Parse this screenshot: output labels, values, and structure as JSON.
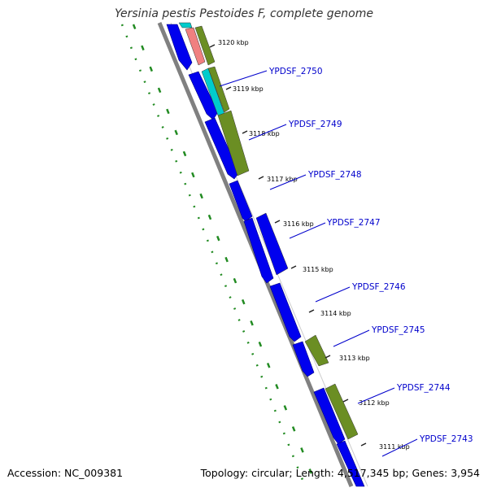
{
  "title": "Yersinia pestis Pestoides F, complete genome",
  "footer": {
    "accession": "Accession: NC_009381",
    "topology": "Topology: circular; Length: 4,517,345 bp; Genes: 3,954"
  },
  "ticks": [
    "3120 kbp",
    "3119 kbp",
    "3118 kbp",
    "3117 kbp",
    "3116 kbp",
    "3115 kbp",
    "3114 kbp",
    "3113 kbp",
    "3112 kbp",
    "3111 kbp"
  ],
  "gene_labels": [
    "YPDSF_2750",
    "YPDSF_2749",
    "YPDSF_2748",
    "YPDSF_2747",
    "YPDSF_2746",
    "YPDSF_2745",
    "YPDSF_2744",
    "YPDSF_2743"
  ],
  "colors": {
    "cds": "#0000ee",
    "olive": "#6b8e23",
    "cyan": "#00cccc",
    "pink": "#f08080",
    "backbone": "#808080",
    "gc_dots": "#228b22",
    "label": "#0000cc"
  }
}
